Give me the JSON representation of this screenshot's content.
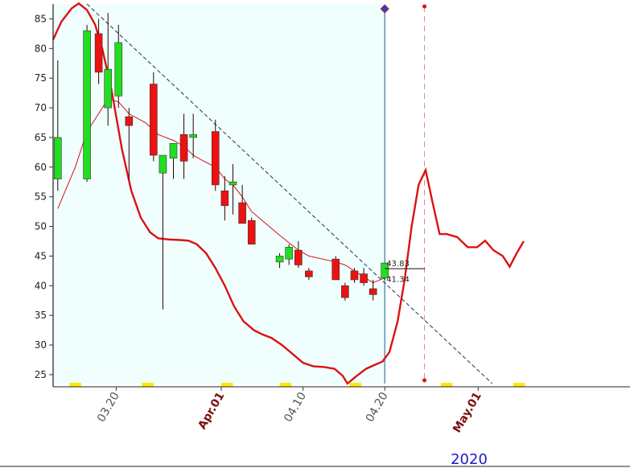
{
  "chart_data": {
    "type": "candlestick",
    "year_label": "2020",
    "y_ticks": [
      25,
      30,
      35,
      40,
      45,
      50,
      55,
      60,
      65,
      70,
      75,
      80,
      85
    ],
    "ylim": [
      23.5,
      87.5
    ],
    "x_index_range": [
      -0.4,
      49
    ],
    "x_tick_labels": [
      {
        "label": "03.20",
        "index": 5,
        "month": false
      },
      {
        "label": "Apr.01",
        "index": 14,
        "month": true
      },
      {
        "label": "04.10",
        "index": 21,
        "month": false
      },
      {
        "label": "04.20",
        "index": 28,
        "month": false
      },
      {
        "label": "May.01",
        "index": 36,
        "month": true
      }
    ],
    "highlight_end_index": 28,
    "future_marker_index": 31.4,
    "candles": [
      {
        "i": 0,
        "o": 58,
        "h": 78,
        "l": 56,
        "c": 65
      },
      {
        "i": 2.5,
        "o": 58,
        "h": 84,
        "l": 57.5,
        "c": 83
      },
      {
        "i": 3.5,
        "o": 82.5,
        "h": 85,
        "l": 74,
        "c": 76
      },
      {
        "i": 4.3,
        "o": 70,
        "h": 86,
        "l": 67,
        "c": 76.5
      },
      {
        "i": 5.2,
        "o": 72,
        "h": 84,
        "l": 70,
        "c": 81
      },
      {
        "i": 6.1,
        "o": 68.5,
        "h": 70,
        "l": 58,
        "c": 67
      },
      {
        "i": 8.2,
        "o": 74,
        "h": 76,
        "l": 61,
        "c": 62
      },
      {
        "i": 9.0,
        "o": 59,
        "h": 62,
        "l": 36,
        "c": 62
      },
      {
        "i": 9.9,
        "o": 61.5,
        "h": 64,
        "l": 58,
        "c": 64
      },
      {
        "i": 10.8,
        "o": 65.5,
        "h": 69,
        "l": 58,
        "c": 61
      },
      {
        "i": 11.6,
        "o": 65,
        "h": 69,
        "l": 61.5,
        "c": 65.5
      },
      {
        "i": 13.5,
        "o": 66,
        "h": 68,
        "l": 56,
        "c": 57
      },
      {
        "i": 14.3,
        "o": 56,
        "h": 58.5,
        "l": 51,
        "c": 53.5
      },
      {
        "i": 15.0,
        "o": 57,
        "h": 60.5,
        "l": 52,
        "c": 57.5
      },
      {
        "i": 15.8,
        "o": 54,
        "h": 57,
        "l": 50.5,
        "c": 50.5
      },
      {
        "i": 16.6,
        "o": 51,
        "h": 51.5,
        "l": 47,
        "c": 47
      },
      {
        "i": 19.0,
        "o": 44,
        "h": 45.5,
        "l": 43,
        "c": 45
      },
      {
        "i": 19.8,
        "o": 44.5,
        "h": 47,
        "l": 43.5,
        "c": 46.5
      },
      {
        "i": 20.6,
        "o": 46,
        "h": 47.5,
        "l": 43,
        "c": 43.5
      },
      {
        "i": 21.5,
        "o": 42.5,
        "h": 43,
        "l": 41,
        "c": 41.5
      },
      {
        "i": 23.8,
        "o": 44.5,
        "h": 45,
        "l": 41,
        "c": 41
      },
      {
        "i": 24.6,
        "o": 40,
        "h": 40.5,
        "l": 37.5,
        "c": 38
      },
      {
        "i": 25.4,
        "o": 42.5,
        "h": 43,
        "l": 40.5,
        "c": 41
      },
      {
        "i": 26.2,
        "o": 42,
        "h": 43,
        "l": 40,
        "c": 40.5
      },
      {
        "i": 27.0,
        "o": 39.5,
        "h": 41,
        "l": 37.5,
        "c": 38.5
      },
      {
        "i": 28.0,
        "o": 41.3,
        "h": 43.8,
        "l": 41,
        "c": 43.83
      }
    ],
    "last_price_labels": {
      "high": "43.83",
      "low": "41.34"
    },
    "moving_average": [
      [
        0,
        53
      ],
      [
        1.5,
        60
      ],
      [
        2.5,
        66
      ],
      [
        3.5,
        69
      ],
      [
        4.3,
        71.5
      ],
      [
        5.2,
        71
      ],
      [
        6.1,
        69
      ],
      [
        7.5,
        67.5
      ],
      [
        8.6,
        65.5
      ],
      [
        9.9,
        64.5
      ],
      [
        10.8,
        63.5
      ],
      [
        11.6,
        62
      ],
      [
        12.5,
        61
      ],
      [
        13.5,
        60
      ],
      [
        14.3,
        58
      ],
      [
        15.0,
        57
      ],
      [
        15.8,
        55
      ],
      [
        16.6,
        52.5
      ],
      [
        17.8,
        50.5
      ],
      [
        19.0,
        48.5
      ],
      [
        20.6,
        46
      ],
      [
        21.5,
        45
      ],
      [
        23.8,
        44
      ],
      [
        24.6,
        43.5
      ],
      [
        25.4,
        42.5
      ],
      [
        26.2,
        41.5
      ],
      [
        27.0,
        40.5
      ],
      [
        28.0,
        41.3
      ]
    ],
    "channel_curve": [
      [
        -0.4,
        81.5
      ],
      [
        0.3,
        84.5
      ],
      [
        1.2,
        86.8
      ],
      [
        1.8,
        87.6
      ],
      [
        2.5,
        86.5
      ],
      [
        3.2,
        84
      ],
      [
        3.8,
        80
      ],
      [
        4.6,
        73
      ],
      [
        5.5,
        63
      ],
      [
        6.3,
        56
      ],
      [
        7.1,
        51.5
      ],
      [
        7.9,
        49
      ],
      [
        8.6,
        48
      ],
      [
        9.5,
        47.8
      ],
      [
        10.5,
        47.7
      ],
      [
        11.2,
        47.6
      ],
      [
        11.9,
        47
      ],
      [
        12.7,
        45.5
      ],
      [
        13.5,
        43
      ],
      [
        14.3,
        40
      ],
      [
        15.1,
        36.5
      ],
      [
        15.9,
        34
      ],
      [
        16.8,
        32.5
      ],
      [
        17.5,
        31.8
      ],
      [
        18.3,
        31.2
      ],
      [
        19.2,
        30
      ],
      [
        20.1,
        28.5
      ],
      [
        21.0,
        27
      ],
      [
        21.9,
        26.4
      ],
      [
        22.8,
        26.3
      ],
      [
        23.7,
        26
      ],
      [
        24.4,
        24.8
      ],
      [
        24.8,
        23.5
      ],
      [
        25.6,
        24.8
      ],
      [
        26.4,
        26
      ],
      [
        27.2,
        26.7
      ],
      [
        27.8,
        27.2
      ],
      [
        28.4,
        28.8
      ],
      [
        29.1,
        34
      ],
      [
        29.7,
        41
      ],
      [
        30.3,
        50
      ],
      [
        30.9,
        57
      ],
      [
        31.5,
        59.5
      ],
      [
        32.1,
        54
      ],
      [
        32.7,
        48.7
      ],
      [
        33.3,
        48.7
      ],
      [
        34.2,
        48.2
      ],
      [
        35.1,
        46.5
      ],
      [
        35.9,
        46.5
      ],
      [
        36.6,
        47.6
      ],
      [
        37.3,
        46
      ],
      [
        38.1,
        45
      ],
      [
        38.7,
        43.2
      ],
      [
        39.3,
        45.5
      ],
      [
        39.9,
        47.5
      ]
    ],
    "trend_line": {
      "from": [
        2.5,
        87.5
      ],
      "to": [
        37.2,
        23.5
      ]
    }
  }
}
